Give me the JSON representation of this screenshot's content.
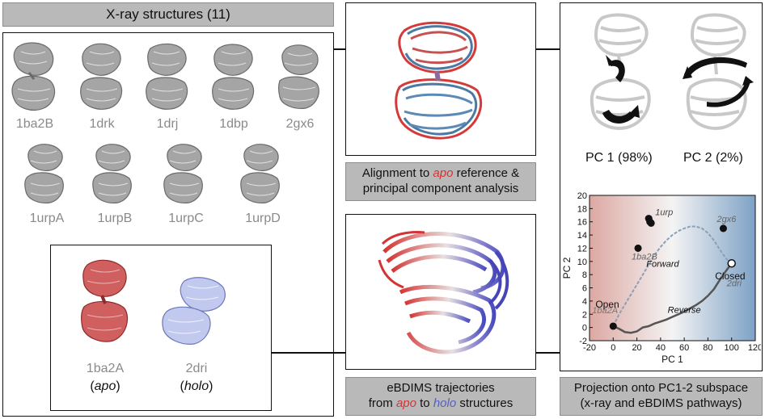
{
  "left": {
    "header": "X-ray structures (11)",
    "structures_row1": [
      "1ba2B",
      "1drk",
      "1drj",
      "1dbp",
      "2gx6"
    ],
    "structures_row2": [
      "1urpA",
      "1urpB",
      "1urpC",
      "1urpD"
    ],
    "highlight": {
      "apo": {
        "id": "1ba2A",
        "tag": "(apo)",
        "tag_word": "apo"
      },
      "holo": {
        "id": "2dri",
        "tag": "(holo)",
        "tag_word": "holo"
      }
    }
  },
  "middle": {
    "caption1_line1_pre": "Alignment to ",
    "caption1_line1_word": "apo",
    "caption1_line1_post": " reference &",
    "caption1_line2": "principal component analysis",
    "caption2_line1": "eBDIMS trajectories",
    "caption2_line2_pre": "from ",
    "caption2_line2_apo": "apo",
    "caption2_line2_mid": " to ",
    "caption2_line2_holo": "holo",
    "caption2_line2_post": " structures"
  },
  "right": {
    "pc1_label": "PC 1 (98%)",
    "pc2_label": "PC 2 (2%)",
    "caption_line1": "Projection onto PC1-2 subspace",
    "caption_line2": "(x-ray and eBDIMS pathways)"
  },
  "colors": {
    "apo_red": "#d43434",
    "holo_blue": "#5560c0",
    "gray_protein": "#9a9a9a",
    "caption_bg": "#b9b9b9"
  },
  "chart_data": {
    "type": "scatter",
    "xlabel": "PC 1",
    "ylabel": "PC 2",
    "xlim": [
      -20,
      120
    ],
    "ylim": [
      -2,
      20
    ],
    "xticks": [
      -20,
      0,
      20,
      40,
      60,
      80,
      100,
      120
    ],
    "yticks": [
      -2,
      0,
      2,
      4,
      6,
      8,
      10,
      12,
      14,
      16,
      18,
      20
    ],
    "background": "red-to-blue horizontal gradient",
    "points": [
      {
        "label": "1urp",
        "x": 30,
        "y": 16.5
      },
      {
        "label": "",
        "x": 31,
        "y": 16.0
      },
      {
        "label": "",
        "x": 32,
        "y": 15.8
      },
      {
        "label": "1ba2B",
        "x": 21,
        "y": 12.0
      },
      {
        "label": "2gx6",
        "x": 93,
        "y": 15.0
      },
      {
        "label": "1ba2A",
        "x": 0,
        "y": 0.2
      },
      {
        "label": "2dri",
        "x": 100,
        "y": 9.7
      }
    ],
    "annotations": [
      "Open",
      "Closed",
      "Forward",
      "Reverse"
    ],
    "series": [
      {
        "name": "Forward",
        "x": [
          0,
          5,
          10,
          15,
          20,
          25,
          30,
          35,
          40,
          45,
          50,
          55,
          60,
          65,
          70,
          75,
          80,
          85,
          90,
          95,
          100
        ],
        "y": [
          0.2,
          2.0,
          3.5,
          5.0,
          6.5,
          8.0,
          9.5,
          11.0,
          12.2,
          13.2,
          14.0,
          14.6,
          15.0,
          15.3,
          15.3,
          15.0,
          14.3,
          13.2,
          11.8,
          10.5,
          9.7
        ]
      },
      {
        "name": "Reverse",
        "x": [
          100,
          95,
          90,
          85,
          80,
          75,
          70,
          65,
          60,
          55,
          50,
          45,
          40,
          35,
          30,
          25,
          20,
          15,
          10,
          5,
          0
        ],
        "y": [
          9.7,
          8.5,
          7.2,
          5.8,
          4.8,
          4.0,
          3.4,
          2.9,
          2.4,
          2.0,
          1.6,
          1.2,
          0.9,
          0.6,
          0.2,
          0.0,
          -0.6,
          -0.8,
          -0.7,
          -0.2,
          0.2
        ]
      }
    ]
  }
}
